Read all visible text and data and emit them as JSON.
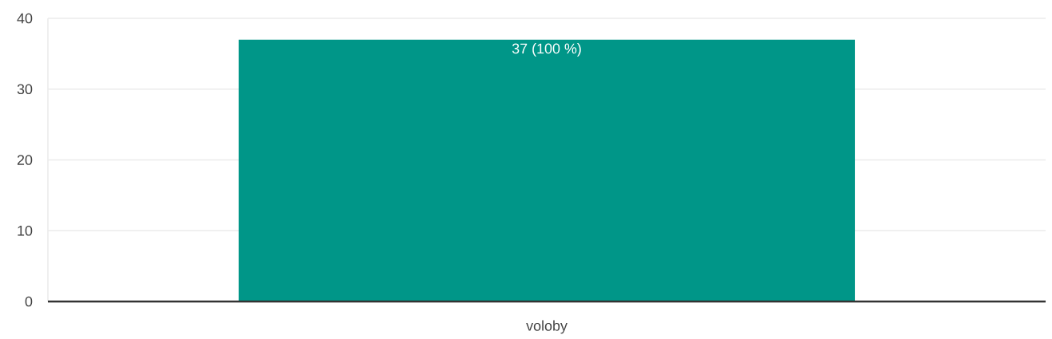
{
  "chart_data": {
    "type": "bar",
    "categories": [
      "voloby"
    ],
    "values": [
      37
    ],
    "value_labels": [
      "37 (100 %)"
    ],
    "color": "#009688",
    "ylim": [
      0,
      40
    ],
    "yticks": [
      0,
      10,
      20,
      30,
      40
    ],
    "grid": "y"
  }
}
